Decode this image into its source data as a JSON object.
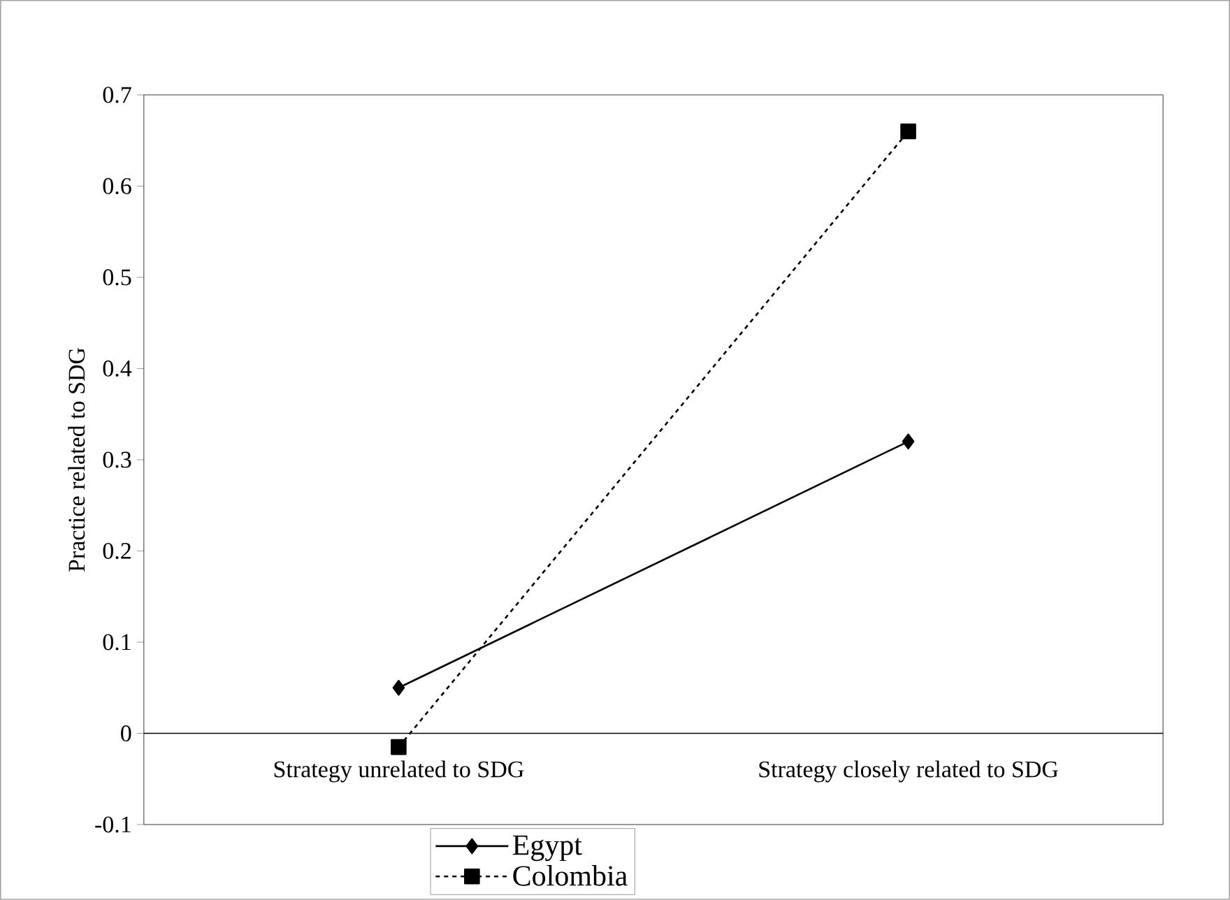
{
  "chart_data": {
    "type": "line",
    "ylabel": "Practice related to SDG",
    "categories": [
      "Strategy unrelated to SDG",
      "Strategy closely related to SDG"
    ],
    "series": [
      {
        "name": "Egypt",
        "color": "#000000",
        "values": [
          0.05,
          0.32
        ],
        "marker": "diamond",
        "line_style": "solid"
      },
      {
        "name": "Colombia",
        "color": "#000000",
        "values": [
          -0.015,
          0.66
        ],
        "marker": "square",
        "line_style": "dashed"
      }
    ],
    "ylim": [
      -0.1,
      0.7
    ],
    "yticks": [
      -0.1,
      0,
      0.1,
      0.2,
      0.3,
      0.4,
      0.5,
      0.6,
      0.7
    ],
    "grid": false,
    "legend": "bottom"
  }
}
